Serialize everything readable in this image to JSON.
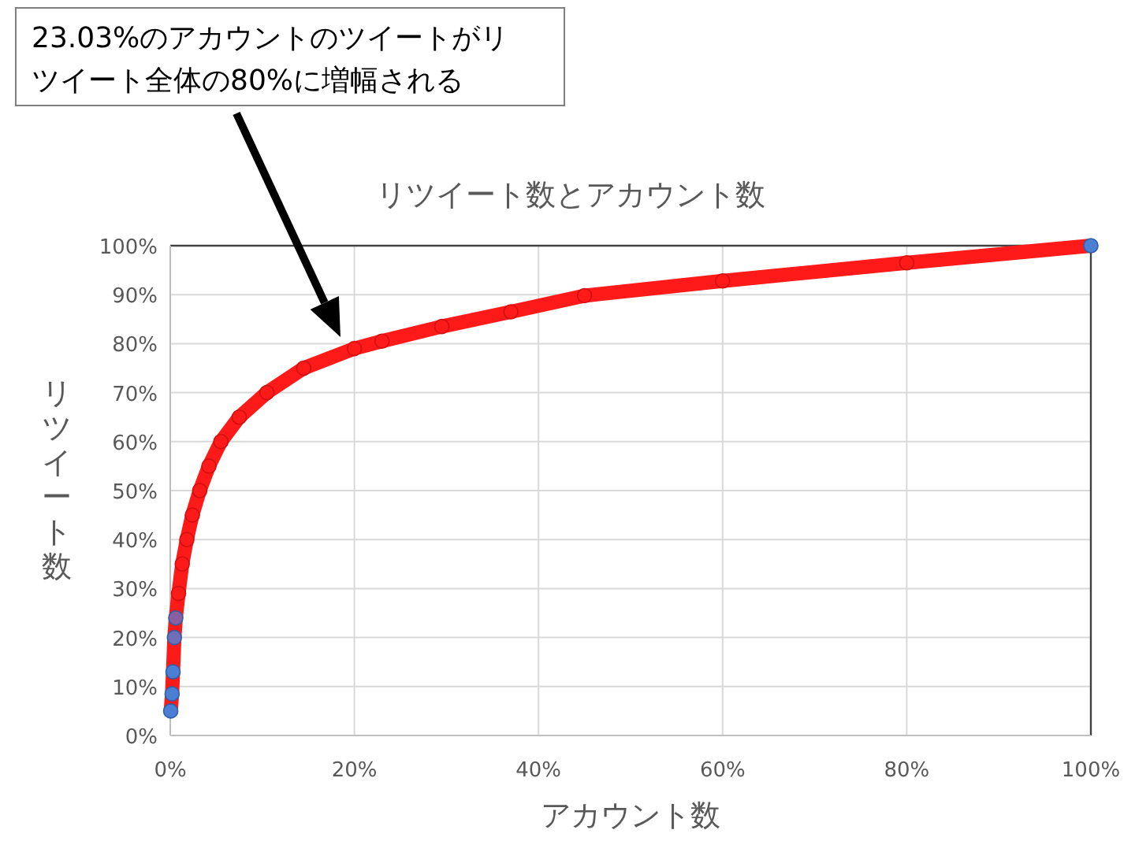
{
  "chart_data": {
    "type": "line",
    "title": "リツイート数とアカウント数",
    "xlabel": "アカウント数",
    "ylabel": "リツイート数",
    "annotations": [
      "23.03%のアカウントのツイートがリツイート全体の80%に増幅される"
    ],
    "xlim": [
      0,
      100
    ],
    "ylim": [
      0,
      100
    ],
    "xticks": [
      {
        "value": 0,
        "label": "0%"
      },
      {
        "value": 20,
        "label": "20%"
      },
      {
        "value": 40,
        "label": "40%"
      },
      {
        "value": 60,
        "label": "60%"
      },
      {
        "value": 80,
        "label": "80%"
      },
      {
        "value": 100,
        "label": "100%"
      }
    ],
    "yticks": [
      {
        "value": 0,
        "label": "0%"
      },
      {
        "value": 10,
        "label": "10%"
      },
      {
        "value": 20,
        "label": "20%"
      },
      {
        "value": 30,
        "label": "30%"
      },
      {
        "value": 40,
        "label": "40%"
      },
      {
        "value": 50,
        "label": "50%"
      },
      {
        "value": 60,
        "label": "60%"
      },
      {
        "value": 70,
        "label": "70%"
      },
      {
        "value": 80,
        "label": "80%"
      },
      {
        "value": 90,
        "label": "90%"
      },
      {
        "value": 100,
        "label": "100%"
      }
    ],
    "grid": true,
    "marker": "circle",
    "series": [
      {
        "color": "#ff1a1a",
        "x": [
          0.05,
          0.2,
          0.3,
          0.45,
          0.6,
          0.9,
          1.3,
          1.8,
          2.4,
          3.2,
          4.2,
          5.5,
          7.5,
          10.5,
          14.5,
          20,
          23,
          29.5,
          37,
          45,
          60,
          80,
          100
        ],
        "values": [
          5,
          8.5,
          13,
          20,
          24,
          29,
          35,
          40,
          45,
          50,
          55,
          60,
          65,
          70,
          75,
          79,
          80.5,
          83.5,
          86.5,
          89.8,
          92.8,
          96.5,
          100
        ],
        "colors": [
          "#4a7fd4",
          "#4a7fd4",
          "#4a7fd4",
          "#6f6fb8",
          "#8a5fa0",
          "#ff1a1a",
          "#ff1a1a",
          "#ff1a1a",
          "#ff1a1a",
          "#ff1a1a",
          "#ff1a1a",
          "#ff1a1a",
          "#ff1a1a",
          "#ff1a1a",
          "#ff1a1a",
          "#ff1a1a",
          "#ff1a1a",
          "#ff1a1a",
          "#ff1a1a",
          "#ff1a1a",
          "#ff1a1a",
          "#ff1a1a",
          "#4a7fd4"
        ]
      }
    ]
  }
}
